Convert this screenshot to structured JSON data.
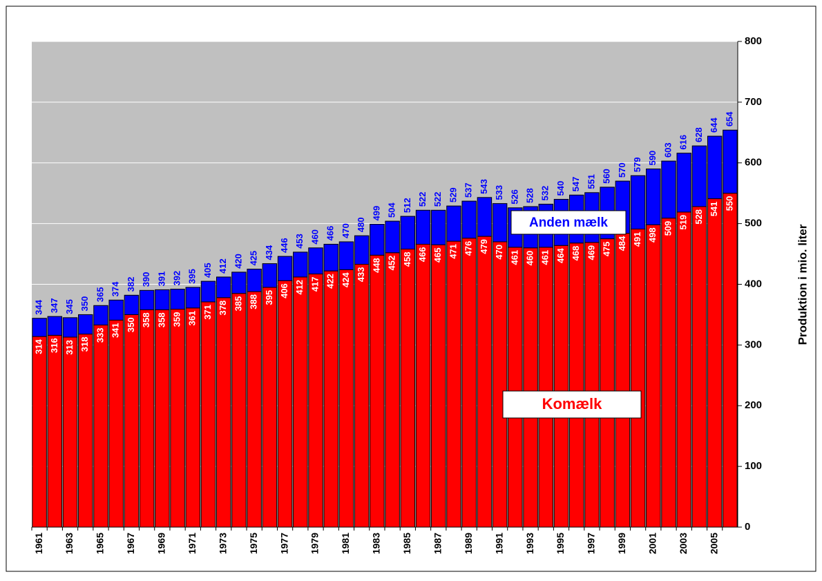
{
  "chart_data": {
    "type": "stacked_bar",
    "categories": [
      "1961",
      null,
      "1963",
      null,
      "1965",
      null,
      "1967",
      null,
      "1969",
      null,
      "1971",
      null,
      "1973",
      null,
      "1975",
      null,
      "1977",
      null,
      "1979",
      null,
      "1981",
      null,
      "1983",
      null,
      "1985",
      null,
      "1987",
      null,
      "1989",
      null,
      "1991",
      null,
      "1993",
      null,
      "1995",
      null,
      "1997",
      null,
      "1999",
      null,
      "2001",
      null,
      "2003",
      null,
      "2005",
      null
    ],
    "series": [
      {
        "name": "Komælk",
        "color": "#ff0000",
        "label_color": "#ffffff",
        "values": [
          314,
          316,
          313,
          318,
          333,
          341,
          350,
          358,
          358,
          359,
          361,
          371,
          378,
          385,
          388,
          395,
          406,
          412,
          417,
          422,
          424,
          433,
          448,
          452,
          458,
          466,
          465,
          471,
          476,
          479,
          470,
          461,
          460,
          461,
          464,
          468,
          469,
          475,
          484,
          491,
          498,
          509,
          519,
          528,
          541,
          550
        ]
      },
      {
        "name": "Anden mælk",
        "color": "#0000ff",
        "values": [
          30,
          31,
          32,
          32,
          32,
          33,
          32,
          32,
          33,
          33,
          34,
          34,
          34,
          35,
          37,
          39,
          40,
          41,
          43,
          44,
          46,
          47,
          51,
          52,
          54,
          56,
          57,
          58,
          61,
          64,
          63,
          65,
          68,
          71,
          76,
          79,
          82,
          85,
          86,
          88,
          92,
          94,
          97,
          100,
          103,
          104
        ]
      }
    ],
    "totals": [
      344,
      347,
      345,
      350,
      365,
      374,
      382,
      390,
      391,
      392,
      395,
      405,
      412,
      420,
      425,
      434,
      446,
      453,
      460,
      466,
      470,
      480,
      499,
      504,
      512,
      522,
      522,
      529,
      537,
      543,
      533,
      526,
      528,
      532,
      540,
      547,
      551,
      560,
      570,
      579,
      590,
      603,
      616,
      628,
      644,
      654
    ],
    "y_axis_label": "Produktion i mio. liter",
    "ylim": [
      0,
      800
    ],
    "yticks": [
      0,
      100,
      200,
      300,
      400,
      500,
      600,
      700,
      800
    ],
    "grid": true,
    "y_axis_side": "right",
    "background": "#c0c0c0"
  }
}
